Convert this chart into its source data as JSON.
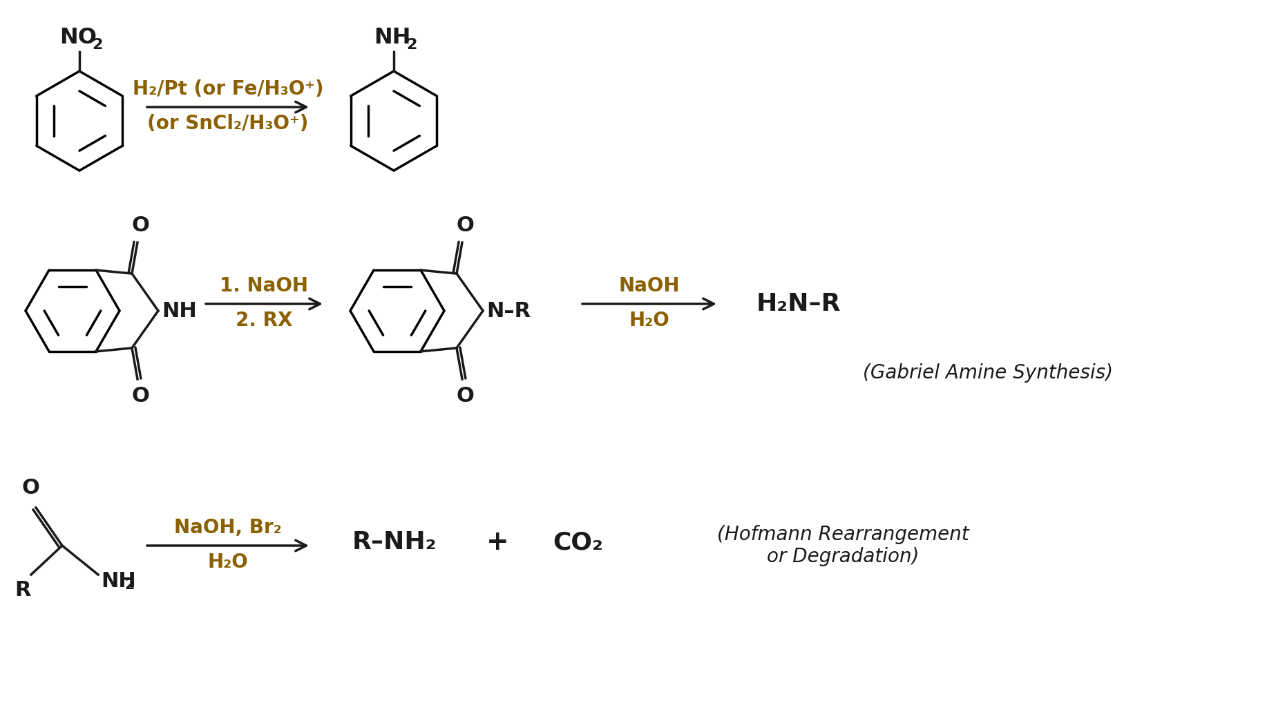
{
  "bg_color": "#ffffff",
  "line_color": "#1a1a1a",
  "reagent_color": "#8B6000",
  "reaction1": {
    "reagent_above": "H₂/Pt (or Fe/H₃O⁺)",
    "reagent_below": "(or SnCl₂/H₃O⁺)"
  },
  "reaction2": {
    "reagent_above": "1. NaOH",
    "reagent_below": "2. RX",
    "reagent2_above": "NaOH",
    "reagent2_below": "H₂O",
    "name": "(Gabriel Amine Synthesis)"
  },
  "reaction3": {
    "reagent_above": "NaOH, Br₂",
    "reagent_below": "H₂O",
    "name": "(Hofmann Rearrangement\nor Degradation)"
  }
}
